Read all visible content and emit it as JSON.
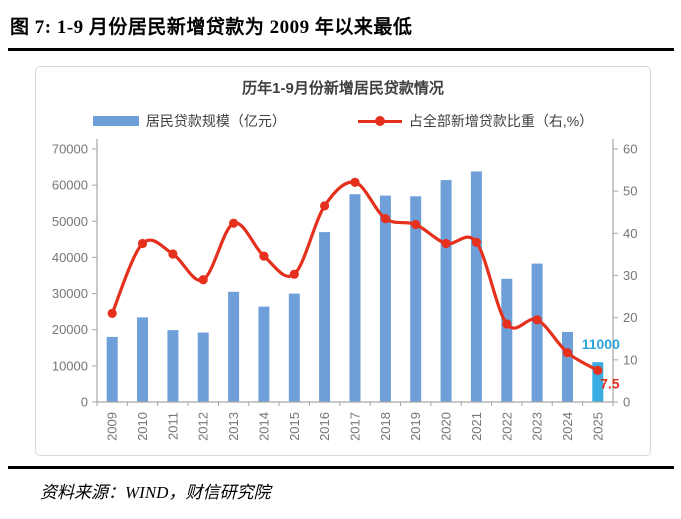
{
  "header": {
    "title": "图 7:  1-9 月份居民新增贷款为 2009 年以来最低"
  },
  "footer": {
    "source": "资料来源：WIND，财信研究院"
  },
  "chart": {
    "title": "历年1-9月份新增居民贷款情况",
    "legend": [
      {
        "label": "居民贷款规模（亿元）",
        "type": "bar"
      },
      {
        "label": "占全部新增贷款比重（右,%）",
        "type": "line"
      }
    ]
  },
  "colors": {
    "bar": "#6f9fd8",
    "bar_highlight": "#39ade2",
    "line": "#e5301d",
    "axis": "#a6a6a6",
    "axis_text": "#767676",
    "annotation_bar": "#2fa3dc",
    "annotation_line": "#e5301d"
  },
  "chart_data": {
    "type": "bar",
    "title": "历年1-9月份新增居民贷款情况",
    "categories": [
      "2009",
      "2010",
      "2011",
      "2012",
      "2013",
      "2014",
      "2015",
      "2016",
      "2017",
      "2018",
      "2019",
      "2020",
      "2021",
      "2022",
      "2023",
      "2024",
      "2025"
    ],
    "series": [
      {
        "name": "居民贷款规模（亿元）",
        "type": "bar",
        "axis": "left",
        "values": [
          18000,
          23400,
          19900,
          19200,
          30500,
          26400,
          30000,
          47000,
          57500,
          57100,
          56900,
          61400,
          63800,
          34100,
          38300,
          19400,
          11000
        ]
      },
      {
        "name": "占全部新增贷款比重（右,%）",
        "type": "line",
        "axis": "right",
        "values": [
          21.0,
          37.6,
          35.1,
          29.0,
          42.4,
          34.6,
          30.3,
          46.5,
          52.1,
          43.5,
          42.1,
          37.6,
          37.9,
          18.5,
          19.5,
          11.7,
          7.5
        ]
      }
    ],
    "left_axis": {
      "min": 0,
      "max": 70000,
      "ticks": [
        0,
        10000,
        20000,
        30000,
        40000,
        50000,
        60000,
        70000
      ]
    },
    "right_axis": {
      "min": 0,
      "max": 60,
      "ticks": [
        0,
        10,
        20,
        30,
        40,
        50,
        60
      ]
    },
    "annotations": [
      {
        "text": "11000",
        "series": 0,
        "index": 16
      },
      {
        "text": "7.5",
        "series": 1,
        "index": 16
      }
    ],
    "grid": false,
    "legend_position": "top",
    "smoothed_line": true
  }
}
